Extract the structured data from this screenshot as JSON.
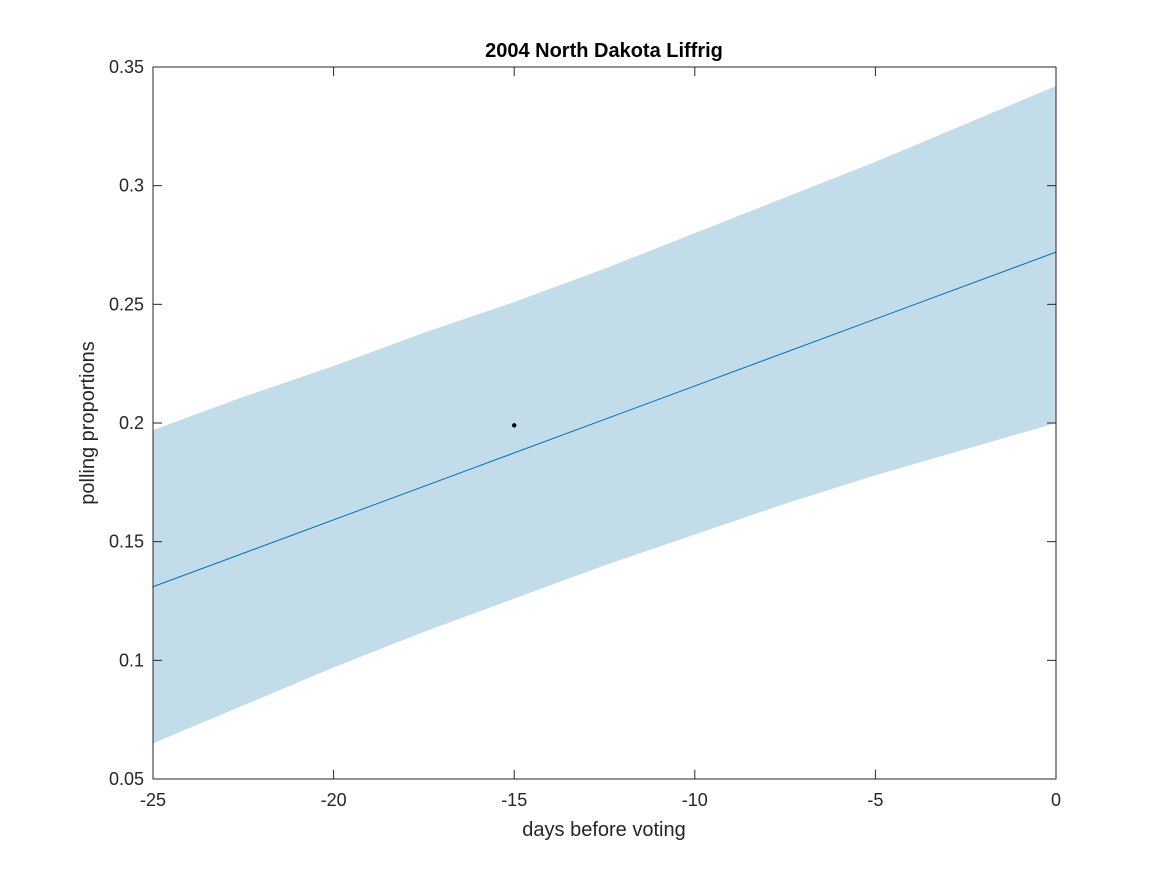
{
  "chart_data": {
    "type": "line",
    "title": "2004 North Dakota Liffrig",
    "xlabel": "days before voting",
    "ylabel": "polling proportions",
    "xlim": [
      -25,
      0
    ],
    "ylim": [
      0.05,
      0.35
    ],
    "xticks": [
      -25,
      -20,
      -15,
      -10,
      -5,
      0
    ],
    "xtick_labels": [
      "-25",
      "-20",
      "-15",
      "-10",
      "-5",
      "0"
    ],
    "yticks": [
      0.05,
      0.1,
      0.15,
      0.2,
      0.25,
      0.3,
      0.35
    ],
    "ytick_labels": [
      "0.05",
      "0.1",
      "0.15",
      "0.2",
      "0.25",
      "0.3",
      "0.35"
    ],
    "grid": false,
    "series": [
      {
        "kind": "line",
        "x": [
          -25,
          0
        ],
        "y": [
          0.131,
          0.272
        ],
        "color": "#0072bd"
      },
      {
        "kind": "band",
        "x": [
          -25,
          -22.5,
          -20,
          -17.5,
          -15,
          -12.5,
          -10,
          -7.5,
          -5,
          -2.5,
          0
        ],
        "upper": [
          0.197,
          0.211,
          0.224,
          0.238,
          0.251,
          0.265,
          0.28,
          0.295,
          0.31,
          0.326,
          0.342
        ],
        "lower": [
          0.065,
          0.081,
          0.097,
          0.112,
          0.126,
          0.14,
          0.153,
          0.166,
          0.178,
          0.189,
          0.2
        ],
        "color": "#c2dcea"
      },
      {
        "kind": "scatter",
        "x": [
          -15
        ],
        "y": [
          0.199
        ],
        "color": "#000000"
      }
    ]
  }
}
